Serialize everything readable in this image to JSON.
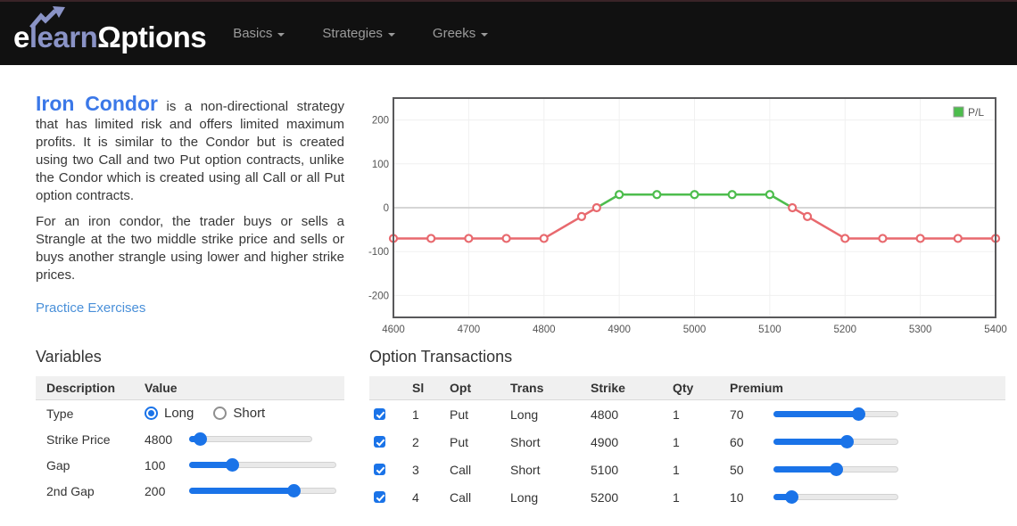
{
  "nav": {
    "logo": {
      "white_start": "e",
      "accent": "learn",
      "white_end": "Ωptions"
    },
    "items": [
      {
        "label": "Basics"
      },
      {
        "label": "Strategies"
      },
      {
        "label": "Greeks"
      }
    ]
  },
  "intro": {
    "title": "Iron Condor",
    "paragraph1_rest": " is a non-directional strategy that has limited risk and offers limited maximum profits. It is similar to the Condor but is created using two Call and two Put option contracts, unlike the Condor which is created using all Call or all Put option contracts.",
    "paragraph2": "For an iron condor, the trader buys or sells a Strangle at the two middle strike price and sells or buys another strangle using lower and higher strike prices.",
    "link_label": "Practice Exercises"
  },
  "chart_data": {
    "type": "line",
    "title": "",
    "xlabel": "",
    "ylabel": "",
    "xlim": [
      4600,
      5400
    ],
    "ylim": [
      -250,
      250
    ],
    "x_ticks": [
      4600,
      4700,
      4800,
      4900,
      5000,
      5100,
      5200,
      5300,
      5400
    ],
    "y_ticks": [
      -200,
      -100,
      0,
      100,
      200
    ],
    "grid": true,
    "legend": {
      "label": "P/L",
      "position": "top-right"
    },
    "series": [
      {
        "name": "P/L",
        "x": [
          4600,
          4650,
          4700,
          4750,
          4800,
          4850,
          4870,
          4900,
          4950,
          5000,
          5050,
          5100,
          5130,
          5150,
          5200,
          5250,
          5300,
          5350,
          5400
        ],
        "y": [
          -70,
          -70,
          -70,
          -70,
          -70,
          -20,
          0,
          30,
          30,
          30,
          30,
          30,
          0,
          -20,
          -70,
          -70,
          -70,
          -70,
          -70
        ]
      }
    ],
    "color_rule": "segments and markers green where P/L > 0, red otherwise",
    "colors": {
      "profit": "#4dbd4d",
      "loss": "#e8696e",
      "zero_line": "#c9c9c9",
      "grid": "#f0f0f0",
      "border": "#59595b"
    }
  },
  "variables": {
    "title": "Variables",
    "headers": [
      "Description",
      "Value"
    ],
    "type_row": {
      "description": "Type",
      "options": [
        "Long",
        "Short"
      ],
      "selected": "Long"
    },
    "slider_rows": [
      {
        "description": "Strike Price",
        "value": "4800",
        "slider_percent": 4
      },
      {
        "description": "Gap",
        "value": "100",
        "slider_percent": 27
      },
      {
        "description": "2nd Gap",
        "value": "200",
        "slider_percent": 73
      }
    ]
  },
  "transactions": {
    "title": "Option Transactions",
    "headers": {
      "sl": "Sl",
      "opt": "Opt",
      "trans": "Trans",
      "strike": "Strike",
      "qty": "Qty",
      "premium": "Premium"
    },
    "rows": [
      {
        "checked": true,
        "sl": "1",
        "opt": "Put",
        "trans": "Long",
        "strike": "4800",
        "qty": "1",
        "premium": "70",
        "slider_percent": 70
      },
      {
        "checked": true,
        "sl": "2",
        "opt": "Put",
        "trans": "Short",
        "strike": "4900",
        "qty": "1",
        "premium": "60",
        "slider_percent": 60
      },
      {
        "checked": true,
        "sl": "3",
        "opt": "Call",
        "trans": "Short",
        "strike": "5100",
        "qty": "1",
        "premium": "50",
        "slider_percent": 50
      },
      {
        "checked": true,
        "sl": "4",
        "opt": "Call",
        "trans": "Long",
        "strike": "5200",
        "qty": "1",
        "premium": "10",
        "slider_percent": 10
      }
    ]
  },
  "colors": {
    "accent_blue": "#1a73e8",
    "heading_blue": "#3b78e8",
    "link_blue": "#4a90d9",
    "logo_accent": "#8a93c6",
    "nav_bg": "#111111",
    "profit_green": "#4dbd4d",
    "loss_red": "#e8696e"
  }
}
